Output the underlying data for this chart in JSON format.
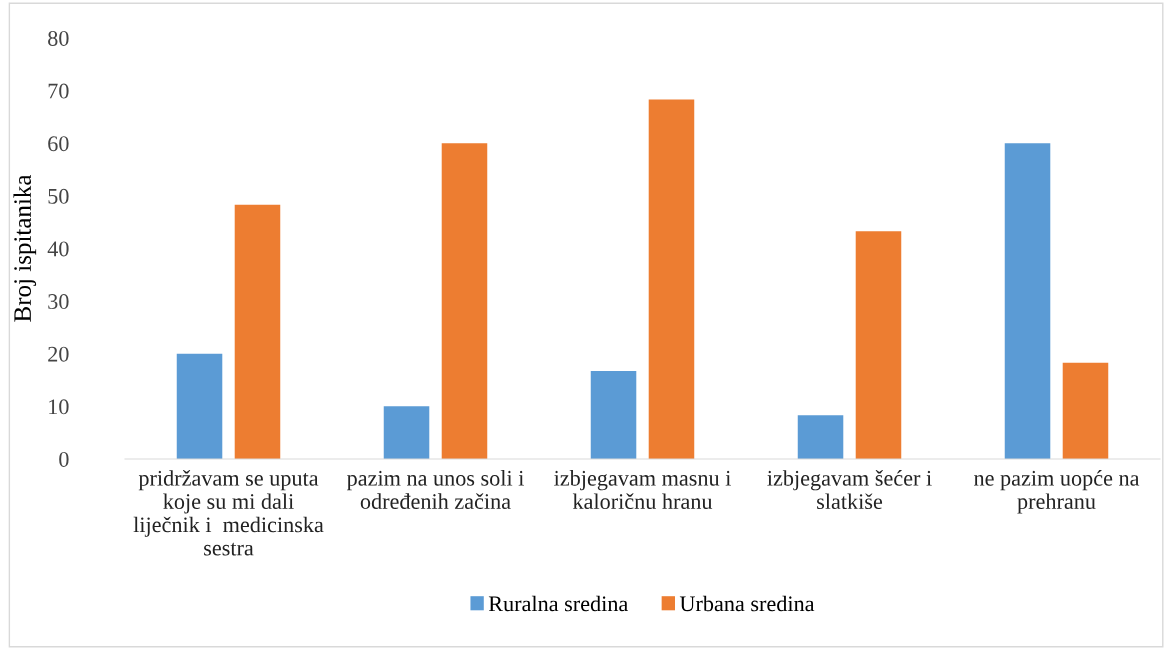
{
  "chart_data": {
    "type": "bar",
    "ylabel": "Broj ispitanika",
    "categories": [
      "pridržavam se uputa\nkoje su mi dali\nliječnik i  medicinska\nsestra",
      "pazim na unos soli i\nodređenih začina",
      "izbjegavam masnu i\nkaloričnu hranu",
      "izbjegavam šećer i\nslatkiše",
      "ne pazim uopće na\nprehranu"
    ],
    "series": [
      {
        "name": "Ruralna sredina",
        "color": "#5b9bd5",
        "values": [
          20,
          10,
          16.7,
          8.3,
          60
        ]
      },
      {
        "name": "Urbana sredina",
        "color": "#ed7d31",
        "values": [
          48.3,
          60,
          68.3,
          43.3,
          18.3
        ]
      }
    ],
    "ylim": [
      0,
      80
    ],
    "yticks": [
      0,
      10,
      20,
      30,
      40,
      50,
      60,
      70,
      80
    ],
    "grid": false,
    "legend": "bottom"
  }
}
